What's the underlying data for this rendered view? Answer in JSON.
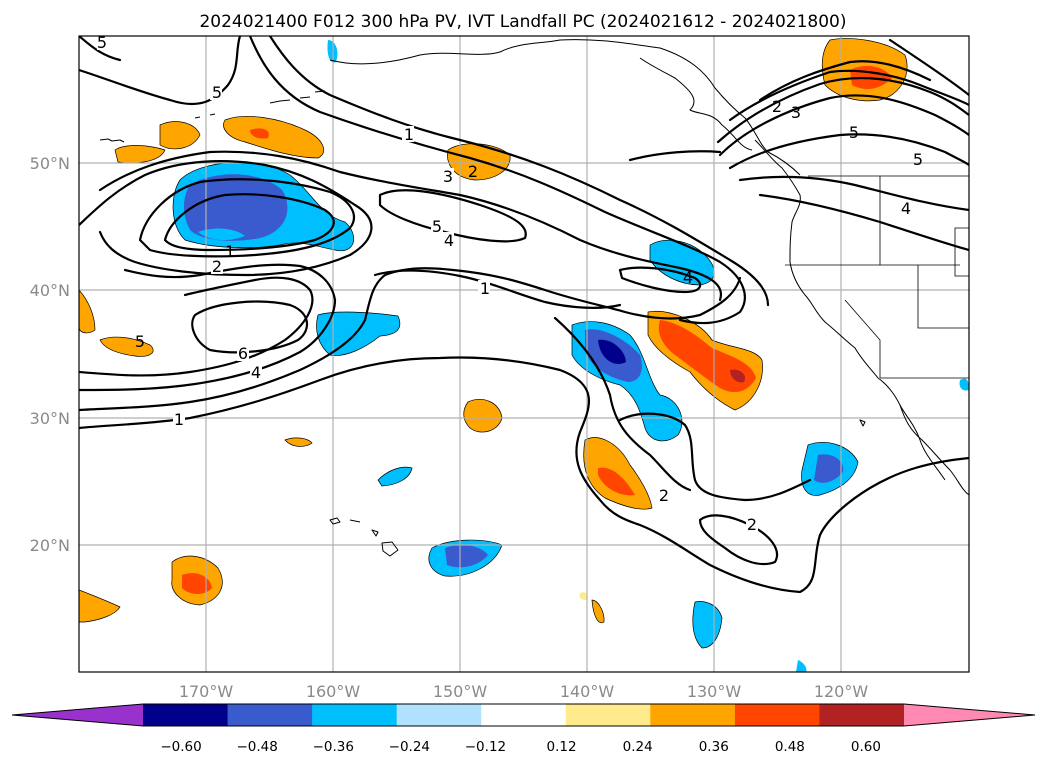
{
  "title": "2024021400 F012 300 hPa PV, IVT Landfall PC (2024021612 - 2024021800)",
  "map": {
    "lon_range": [
      -180,
      -110
    ],
    "lat_range": [
      10,
      60
    ],
    "lon_ticks": [
      "170°W",
      "160°W",
      "150°W",
      "140°W",
      "130°W",
      "120°W"
    ],
    "lat_ticks": [
      "50°N",
      "40°N",
      "30°N",
      "20°N"
    ],
    "gridlines": true
  },
  "colorbar": {
    "ticks": [
      "−0.60",
      "−0.48",
      "−0.36",
      "−0.24",
      "−0.12",
      "0.12",
      "0.24",
      "0.36",
      "0.48",
      "0.60"
    ],
    "colors": [
      "#9932cc",
      "#00008b",
      "#3a5bcd",
      "#00bfff",
      "#b0e2ff",
      "#ffffff",
      "#ffeb8c",
      "#ffa500",
      "#ff4500",
      "#b22222",
      "#ff89b3"
    ],
    "extend": "both"
  },
  "contour_labels": [
    "5",
    "5",
    "1",
    "3",
    "2",
    "5",
    "4",
    "1",
    "2",
    "1",
    "4",
    "6",
    "4",
    "1",
    "5",
    "2",
    "2",
    "3",
    "5",
    "5",
    "4",
    "2"
  ]
}
